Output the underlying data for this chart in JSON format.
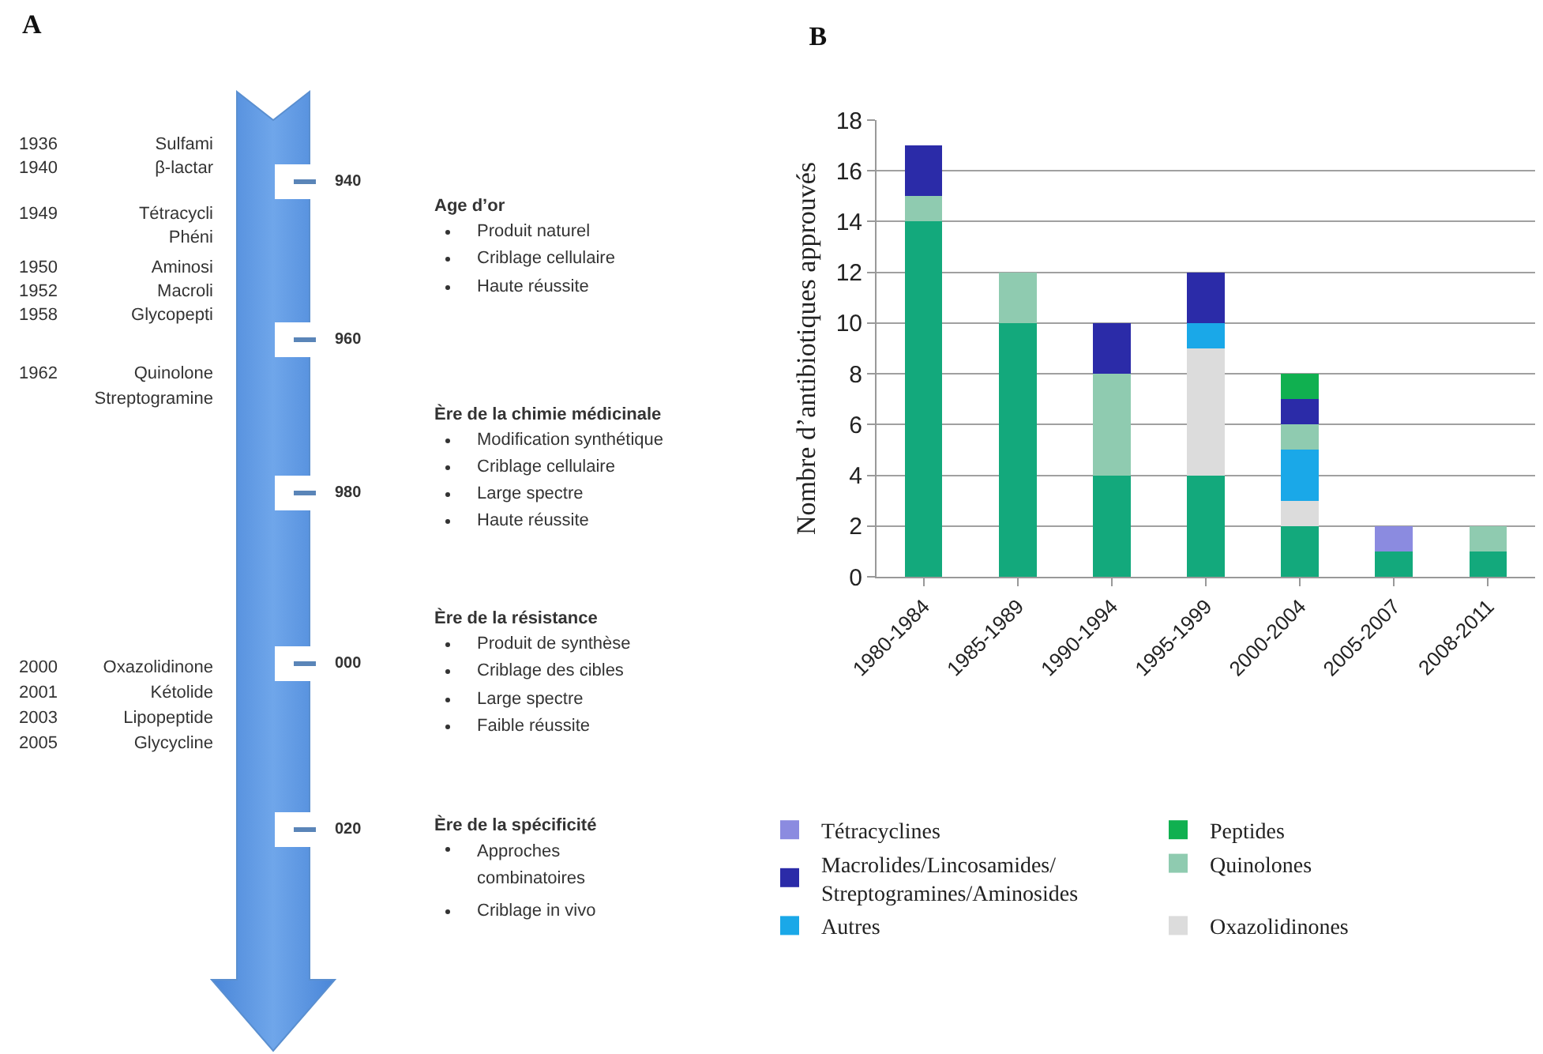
{
  "chart_data": [
    {
      "type": "other",
      "title": "A",
      "annotations": [
        "1936 Sulfami",
        "1940 β-lactar",
        "1949 Tétracycli",
        "Phéni",
        "1950 Aminosi",
        "1952 Macroli",
        "1958 Glycopepti",
        "1962 Quinolone",
        "Streptogramine",
        "2000 Oxazolidinone",
        "2001 Kétolide",
        "2003 Lipopeptide",
        "2005 Glycycline",
        "940",
        "960",
        "980",
        "000",
        "020",
        "Age d’or",
        "Produit naturel",
        "Criblage cellulaire",
        "Haute réussite",
        "Ère de la chimie médicinale",
        "Modification synthétique",
        "Criblage cellulaire",
        "Large spectre",
        "Haute réussite",
        "Ère de la résistance",
        "Produit de synthèse",
        "Criblage des cibles",
        "Large spectre",
        "Faible réussite",
        "Ère de la spécificité",
        "Approches combinatoires",
        "Criblage in vivo"
      ]
    },
    {
      "type": "bar",
      "title": "B",
      "ylabel": "Nombre d’antibiotiques approuvés",
      "stacked": true,
      "categories": [
        "1980-1984",
        "1985-1989",
        "1990-1994",
        "1995-1999",
        "2000-2004",
        "2005-2007",
        "2008-2011"
      ],
      "series": [
        {
          "color": "#13a97c",
          "values": [
            14,
            10,
            4,
            4,
            2,
            1,
            1
          ]
        },
        {
          "name": "Oxazolidinones",
          "color": "#dcdcdc",
          "values": [
            null,
            null,
            null,
            5,
            1,
            null,
            null
          ]
        },
        {
          "name": "Autres",
          "color": "#1aa8e8",
          "values": [
            null,
            null,
            null,
            1,
            2,
            null,
            null
          ]
        },
        {
          "name": "Quinolones",
          "color": "#8fcbb0",
          "values": [
            1,
            2,
            4,
            null,
            1,
            null,
            1
          ]
        },
        {
          "name": "Macrolides/Lincosamides/Streptogramines/Aminosides",
          "color": "#2b2ba8",
          "values": [
            2,
            null,
            2,
            2,
            1,
            null,
            null
          ]
        },
        {
          "name": "Peptides",
          "color": "#10b050",
          "values": [
            null,
            null,
            null,
            null,
            1,
            null,
            null
          ]
        },
        {
          "name": "Tétracyclines",
          "color": "#8b8be0",
          "values": [
            null,
            null,
            null,
            null,
            null,
            1,
            null
          ]
        }
      ],
      "ylim": [
        0,
        18
      ],
      "yticks": [
        0,
        2,
        4,
        6,
        8,
        10,
        12,
        14,
        16,
        18
      ],
      "grid": "y",
      "legend": "bottom"
    }
  ]
}
